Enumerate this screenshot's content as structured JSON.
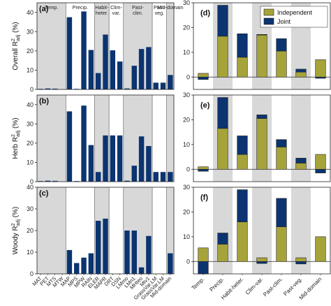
{
  "colors": {
    "bar_left": "#0b3470",
    "independent": "#a6a33a",
    "joint": "#0b3470",
    "shade": "#d8d8d8"
  },
  "chart_data": [
    {
      "id": "a",
      "type": "bar",
      "panel_label": "(a)",
      "ylabel_main": "Overall R",
      "ylabel_sup": "2",
      "ylabel_sub": "adj",
      "ylabel_tail": " (%)",
      "ylim": [
        0,
        45
      ],
      "yticks": [
        0,
        10,
        20,
        30,
        40
      ],
      "categories": [
        "MAT",
        "PET",
        "MTS",
        "MTW",
        "MAP",
        "MPS",
        "MPW",
        "RAIN",
        "ELER",
        "MAPR",
        "DRT",
        "DSN",
        "LMmo",
        "LMn1",
        "MHteo",
        "Mtv1",
        "GrassVar.LM",
        "GrassVar.LM",
        "Mid-domain"
      ],
      "values": [
        0.3,
        0.5,
        0.4,
        0,
        37.5,
        0.3,
        40.5,
        20.5,
        8.5,
        28.5,
        20.3,
        14.5,
        0.5,
        12.3,
        21.0,
        22.0,
        3.5,
        3.5,
        7.5
      ],
      "groups": [
        {
          "name": "Temp.",
          "start": 0,
          "end": 3,
          "shaded": true
        },
        {
          "name": "Precip.",
          "start": 4,
          "end": 7,
          "shaded": false
        },
        {
          "name": "Habit-heter.",
          "start": 8,
          "end": 9,
          "shaded": true
        },
        {
          "name": "Clim-var.",
          "start": 10,
          "end": 11,
          "shaded": false
        },
        {
          "name": "Past-clim.",
          "start": 12,
          "end": 15,
          "shaded": true
        },
        {
          "name": "Past-veg.",
          "start": 16,
          "end": 17,
          "shaded": false
        },
        {
          "name": "Mid-domain",
          "start": 18,
          "end": 18,
          "shaded": true
        }
      ]
    },
    {
      "id": "b",
      "type": "bar",
      "panel_label": "(b)",
      "ylabel_main": "Herb R",
      "ylabel_sup": "2",
      "ylabel_sub": "adj",
      "ylabel_tail": " (%)",
      "ylim": [
        0,
        45
      ],
      "yticks": [
        0,
        10,
        20,
        30,
        40
      ],
      "categories": [
        "MAT",
        "PET",
        "MTS",
        "MTW",
        "MAP",
        "MPS",
        "MPW",
        "RAIN",
        "ELER",
        "MAPR",
        "DRT",
        "DSN",
        "LMmo",
        "LMn1",
        "MHteo",
        "Mtv1",
        "GrassVar.LM",
        "GrassVar.LM",
        "Mid-domain"
      ],
      "values": [
        0.3,
        0.5,
        0.4,
        0,
        36.5,
        0.3,
        39.5,
        19.0,
        5.0,
        24.0,
        24.0,
        24.0,
        0.5,
        8.3,
        23.5,
        18.5,
        5.0,
        5.0,
        5.0
      ],
      "groups": [
        {
          "start": 0,
          "end": 3,
          "shaded": true
        },
        {
          "start": 4,
          "end": 7,
          "shaded": false
        },
        {
          "start": 8,
          "end": 9,
          "shaded": true
        },
        {
          "start": 10,
          "end": 11,
          "shaded": false
        },
        {
          "start": 12,
          "end": 15,
          "shaded": true
        },
        {
          "start": 16,
          "end": 17,
          "shaded": false
        },
        {
          "start": 18,
          "end": 18,
          "shaded": true
        }
      ]
    },
    {
      "id": "c",
      "type": "bar",
      "panel_label": "(c)",
      "ylabel_main": "Woody R",
      "ylabel_sup": "2",
      "ylabel_sub": "adj",
      "ylabel_tail": " (%)",
      "ylim": [
        0,
        40
      ],
      "yticks": [
        0,
        10,
        20,
        30,
        40
      ],
      "categories": [
        "MAT",
        "PET",
        "MTS",
        "MTW",
        "MAP",
        "MPS",
        "MPW",
        "RAIN",
        "ELER",
        "MAPR",
        "DRT",
        "DSN",
        "LMmo",
        "LMn1",
        "MHteo",
        "Mtv1",
        "GrassVar.LM",
        "GrassVar.LM",
        "Mid-domain"
      ],
      "values": [
        0,
        0,
        0,
        0,
        11.0,
        5.0,
        7.5,
        9.5,
        24.5,
        25.5,
        0,
        0,
        20.0,
        20.0,
        3.0,
        17.5,
        0,
        0,
        9.5
      ],
      "groups": [
        {
          "start": 0,
          "end": 3,
          "shaded": true
        },
        {
          "start": 4,
          "end": 7,
          "shaded": false
        },
        {
          "start": 8,
          "end": 9,
          "shaded": true
        },
        {
          "start": 10,
          "end": 11,
          "shaded": false
        },
        {
          "start": 12,
          "end": 15,
          "shaded": true
        },
        {
          "start": 16,
          "end": 17,
          "shaded": false
        },
        {
          "start": 18,
          "end": 18,
          "shaded": true
        }
      ]
    },
    {
      "id": "d",
      "type": "bar",
      "panel_label": "(d)",
      "stacked": true,
      "ylim": [
        -5,
        30
      ],
      "yticks": [
        0,
        10,
        20,
        30
      ],
      "categories": [
        "Temp.",
        "Precip.",
        "Habit-heter.",
        "Clim-var.",
        "Past-clim.",
        "Past-veg.",
        "Mid-domain"
      ],
      "series": [
        {
          "name": "Independent",
          "values": [
            1.5,
            16.5,
            8.0,
            17.0,
            10.5,
            2.0,
            7.0
          ]
        },
        {
          "name": "Joint",
          "values": [
            -1.0,
            12.5,
            9.5,
            0.2,
            5.0,
            1.2,
            -0.5
          ]
        }
      ],
      "legend": "top-right"
    },
    {
      "id": "e",
      "type": "bar",
      "panel_label": "(e)",
      "stacked": true,
      "ylim": [
        -5,
        30
      ],
      "yticks": [
        0,
        10,
        20,
        30
      ],
      "categories": [
        "Temp.",
        "Precip.",
        "Habit-heter.",
        "Clim-var.",
        "Past-clim.",
        "Past-veg.",
        "Mid-domain"
      ],
      "series": [
        {
          "name": "Independent",
          "values": [
            1.0,
            16.5,
            6.0,
            20.5,
            9.0,
            2.5,
            6.0
          ]
        },
        {
          "name": "Joint",
          "values": [
            -0.8,
            12.5,
            7.5,
            1.5,
            3.0,
            2.0,
            -1.5
          ]
        }
      ]
    },
    {
      "id": "f",
      "type": "bar",
      "panel_label": "(f)",
      "stacked": true,
      "ylim": [
        -5,
        30
      ],
      "yticks": [
        0,
        10,
        20,
        30
      ],
      "categories": [
        "Temp.",
        "Precip.",
        "Habit-heter.",
        "Clim-var.",
        "Past-clim.",
        "Past-veg.",
        "Mid-domain"
      ],
      "series": [
        {
          "name": "Independent",
          "values": [
            5.5,
            7.0,
            16.0,
            1.5,
            14.0,
            1.5,
            10.0
          ]
        },
        {
          "name": "Joint",
          "values": [
            -5.0,
            4.5,
            13.0,
            -0.8,
            11.5,
            -1.0,
            0
          ]
        }
      ]
    }
  ]
}
